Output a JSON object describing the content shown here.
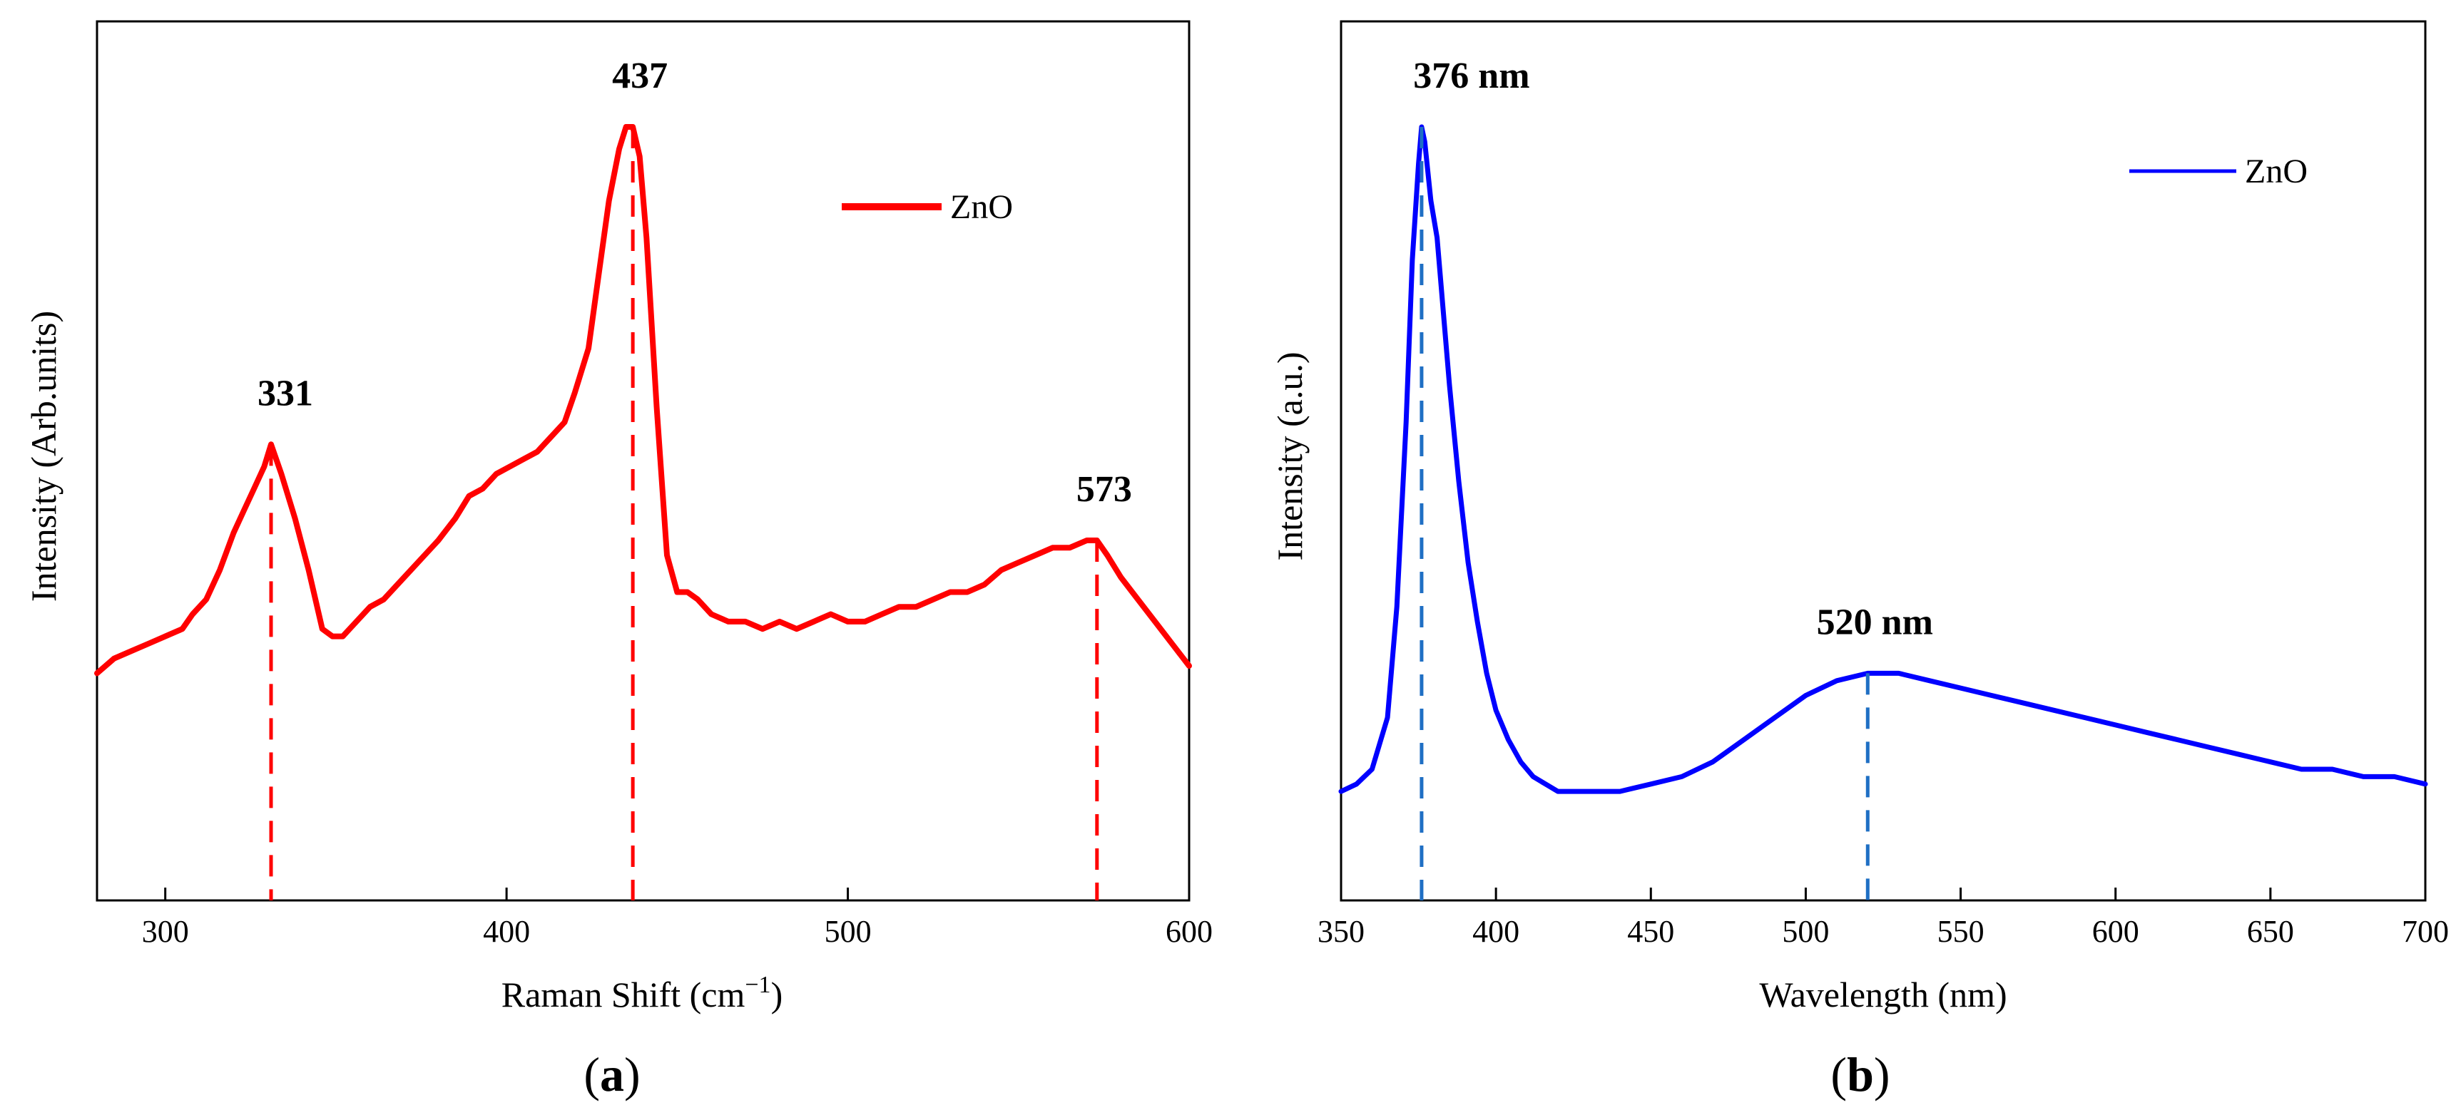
{
  "chart_data": [
    {
      "type": "line",
      "panel_label": "(a)",
      "panel_letter": "a",
      "xlabel": "Raman Shift (cm",
      "xlabel_sup": "−1",
      "xlabel_close": ")",
      "ylabel": "Intensity (Arb.units)",
      "xlim": [
        280,
        600
      ],
      "ylim": [
        0,
        100
      ],
      "y_ticks_shown": false,
      "grid": false,
      "legend": {
        "position": "top-right",
        "entries": [
          "ZnO"
        ]
      },
      "color": "#ff0000",
      "x_ticks": [
        {
          "value": 300,
          "label": "300"
        },
        {
          "value": 400,
          "label": "400"
        },
        {
          "value": 500,
          "label": "500"
        },
        {
          "value": 600,
          "label": "600"
        }
      ],
      "series": [
        {
          "name": "ZnO",
          "x": [
            280,
            285,
            290,
            295,
            300,
            305,
            308,
            312,
            316,
            320,
            323,
            326,
            329,
            331,
            334,
            338,
            342,
            346,
            349,
            352,
            356,
            360,
            364,
            368,
            372,
            376,
            380,
            385,
            389,
            393,
            397,
            401,
            405,
            409,
            413,
            417,
            420,
            424,
            427,
            430,
            433,
            435,
            437,
            439,
            441,
            444,
            447,
            450,
            453,
            456,
            460,
            465,
            470,
            475,
            480,
            485,
            490,
            495,
            500,
            505,
            510,
            515,
            520,
            525,
            530,
            535,
            540,
            545,
            550,
            555,
            560,
            565,
            570,
            573,
            576,
            580,
            585,
            590,
            595,
            600
          ],
          "y": [
            26,
            28,
            29,
            30,
            31,
            32,
            34,
            36,
            40,
            45,
            48,
            51,
            54,
            57,
            53,
            47,
            40,
            32,
            31,
            31,
            33,
            35,
            36,
            38,
            40,
            42,
            44,
            47,
            50,
            51,
            53,
            54,
            55,
            56,
            58,
            60,
            64,
            70,
            80,
            90,
            97,
            100,
            100,
            96,
            85,
            62,
            42,
            37,
            37,
            36,
            34,
            33,
            33,
            32,
            33,
            32,
            33,
            34,
            33,
            33,
            34,
            35,
            35,
            36,
            37,
            37,
            38,
            40,
            41,
            42,
            43,
            43,
            44,
            44,
            42,
            39,
            36,
            33,
            30,
            27
          ]
        }
      ],
      "annotations": [
        {
          "x": 331,
          "label": "331"
        },
        {
          "x": 437,
          "label": "437"
        },
        {
          "x": 573,
          "label": "573"
        }
      ]
    },
    {
      "type": "line",
      "panel_label": "(b)",
      "panel_letter": "b",
      "xlabel": "Wavelength (nm)",
      "ylabel": "Intensity (a.u.)",
      "xlim": [
        350,
        700
      ],
      "ylim": [
        0,
        100
      ],
      "y_ticks_shown": false,
      "grid": false,
      "legend": {
        "position": "top-right",
        "entries": [
          "ZnO"
        ]
      },
      "color": "#0000ff",
      "x_ticks": [
        {
          "value": 350,
          "label": "350"
        },
        {
          "value": 400,
          "label": "400"
        },
        {
          "value": 450,
          "label": "450"
        },
        {
          "value": 500,
          "label": "500"
        },
        {
          "value": 550,
          "label": "550"
        },
        {
          "value": 600,
          "label": "600"
        },
        {
          "value": 650,
          "label": "650"
        },
        {
          "value": 700,
          "label": "700"
        }
      ],
      "series": [
        {
          "name": "ZnO",
          "x": [
            350,
            355,
            360,
            365,
            368,
            371,
            373,
            375,
            376,
            377,
            379,
            381,
            383,
            385,
            388,
            391,
            394,
            397,
            400,
            404,
            408,
            412,
            416,
            420,
            425,
            430,
            440,
            450,
            460,
            470,
            480,
            490,
            500,
            510,
            520,
            530,
            540,
            550,
            560,
            570,
            580,
            590,
            600,
            610,
            620,
            630,
            640,
            650,
            660,
            670,
            680,
            690,
            700
          ],
          "y": [
            10,
            11,
            13,
            20,
            35,
            60,
            82,
            95,
            100,
            98,
            90,
            85,
            75,
            65,
            52,
            41,
            33,
            26,
            21,
            17,
            14,
            12,
            11,
            10,
            10,
            10,
            10,
            11,
            12,
            14,
            17,
            20,
            23,
            25,
            26,
            26,
            25,
            24,
            23,
            22,
            21,
            20,
            19,
            18,
            17,
            16,
            15,
            14,
            13,
            13,
            12,
            12,
            11
          ]
        }
      ],
      "annotations": [
        {
          "x": 376,
          "label": "376 nm"
        },
        {
          "x": 520,
          "label": "520 nm"
        }
      ]
    }
  ]
}
